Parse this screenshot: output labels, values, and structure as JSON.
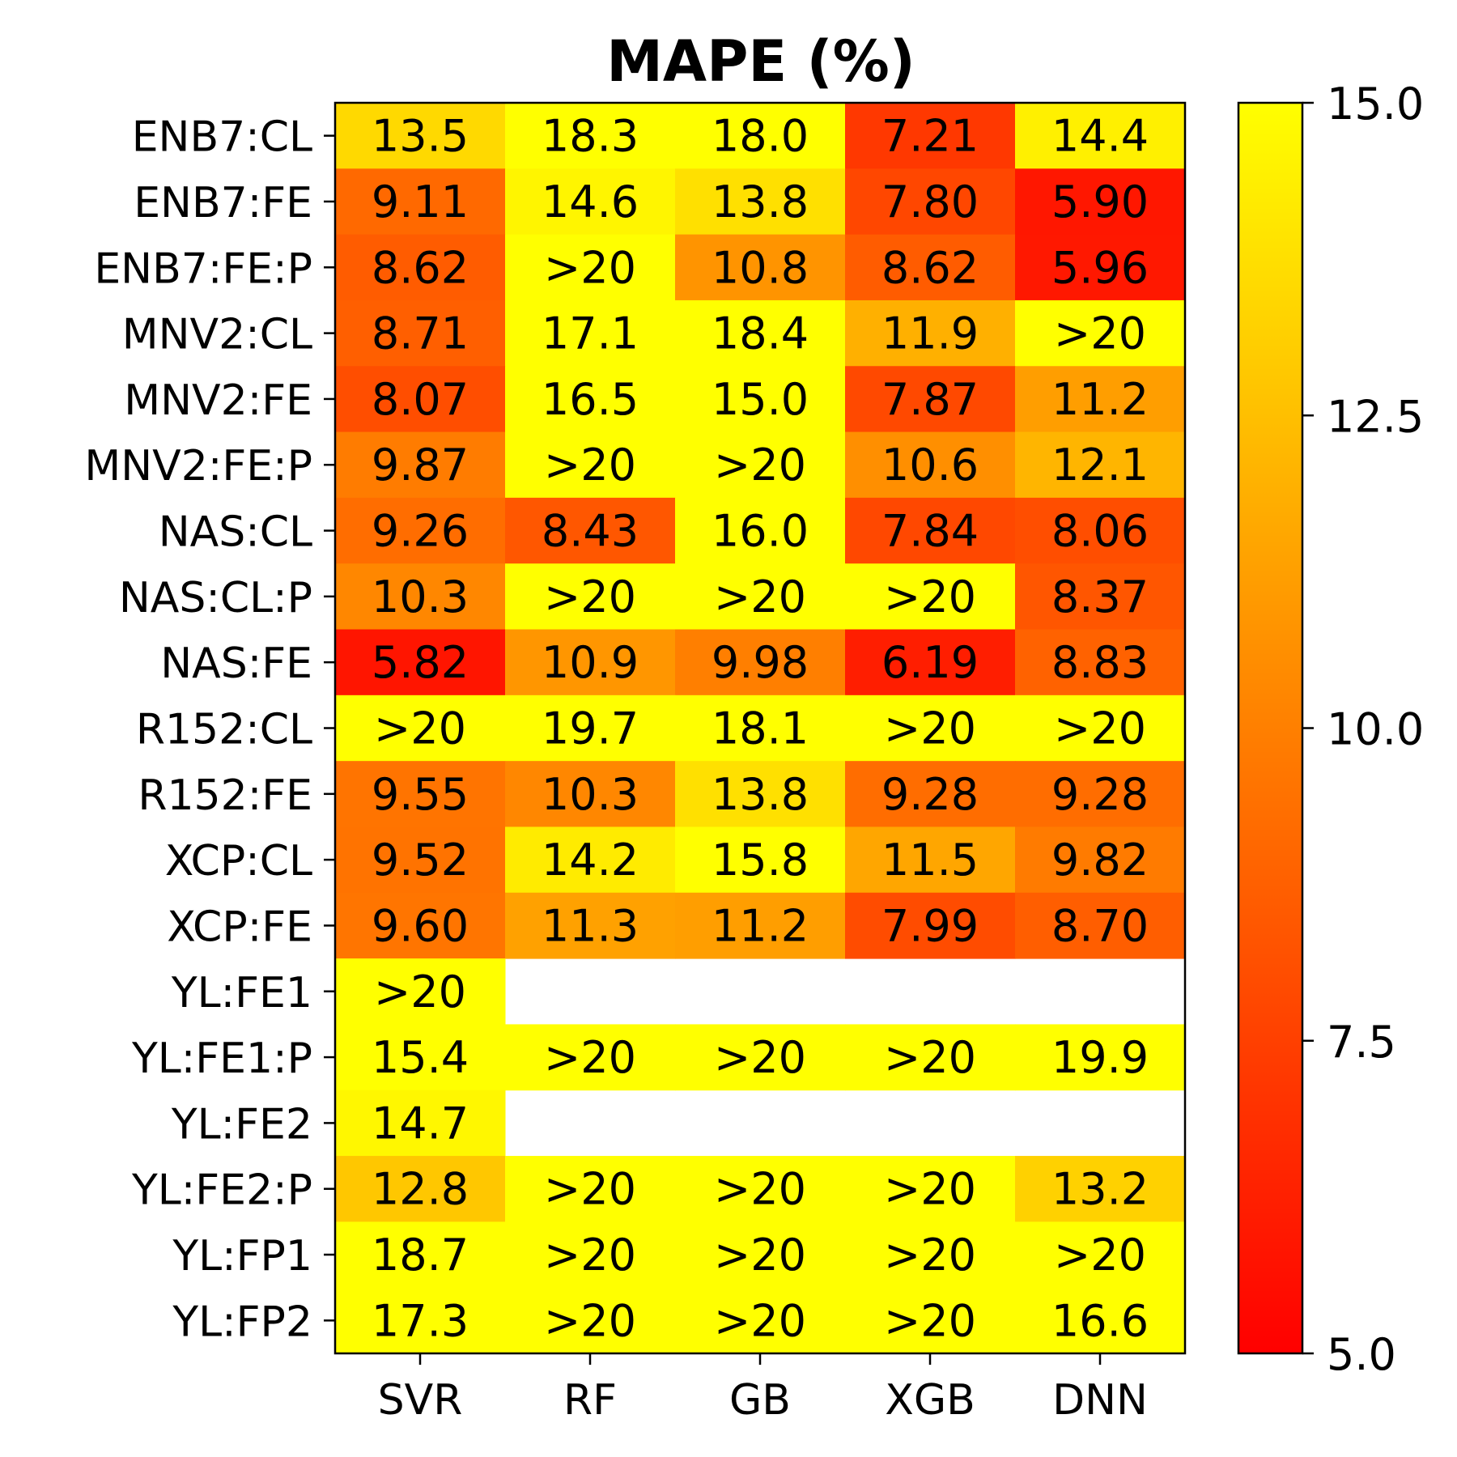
{
  "chart_data": {
    "type": "heatmap",
    "title": "MAPE (%)",
    "columns": [
      "SVR",
      "RF",
      "GB",
      "XGB",
      "DNN"
    ],
    "rows": [
      "ENB7:CL",
      "ENB7:FE",
      "ENB7:FE:P",
      "MNV2:CL",
      "MNV2:FE",
      "MNV2:FE:P",
      "NAS:CL",
      "NAS:CL:P",
      "NAS:FE",
      "R152:CL",
      "R152:FE",
      "XCP:CL",
      "XCP:FE",
      "YL:FE1",
      "YL:FE1:P",
      "YL:FE2",
      "YL:FE2:P",
      "YL:FP1",
      "YL:FP2"
    ],
    "cells": [
      [
        "13.5",
        "18.3",
        "18.0",
        "7.21",
        "14.4"
      ],
      [
        "9.11",
        "14.6",
        "13.8",
        "7.80",
        "5.90"
      ],
      [
        "8.62",
        ">20",
        "10.8",
        "8.62",
        "5.96"
      ],
      [
        "8.71",
        "17.1",
        "18.4",
        "11.9",
        ">20"
      ],
      [
        "8.07",
        "16.5",
        "15.0",
        "7.87",
        "11.2"
      ],
      [
        "9.87",
        ">20",
        ">20",
        "10.6",
        "12.1"
      ],
      [
        "9.26",
        "8.43",
        "16.0",
        "7.84",
        "8.06"
      ],
      [
        "10.3",
        ">20",
        ">20",
        ">20",
        "8.37"
      ],
      [
        "5.82",
        "10.9",
        "9.98",
        "6.19",
        "8.83"
      ],
      [
        ">20",
        "19.7",
        "18.1",
        ">20",
        ">20"
      ],
      [
        "9.55",
        "10.3",
        "13.8",
        "9.28",
        "9.28"
      ],
      [
        "9.52",
        "14.2",
        "15.8",
        "11.5",
        "9.82"
      ],
      [
        "9.60",
        "11.3",
        "11.2",
        "7.99",
        "8.70"
      ],
      [
        ">20",
        "",
        "",
        "",
        ""
      ],
      [
        "15.4",
        ">20",
        ">20",
        ">20",
        "19.9"
      ],
      [
        "14.7",
        "",
        "",
        "",
        ""
      ],
      [
        "12.8",
        ">20",
        ">20",
        ">20",
        "13.2"
      ],
      [
        "18.7",
        ">20",
        ">20",
        ">20",
        ">20"
      ],
      [
        "17.3",
        ">20",
        ">20",
        ">20",
        "16.6"
      ]
    ],
    "color_scale": {
      "min": 5.0,
      "max": 15.0,
      "low_color": "#ff0000",
      "high_color": "#ffff00",
      "ticks": [
        "5.0",
        "7.5",
        "10.0",
        "12.5",
        "15.0"
      ]
    }
  }
}
